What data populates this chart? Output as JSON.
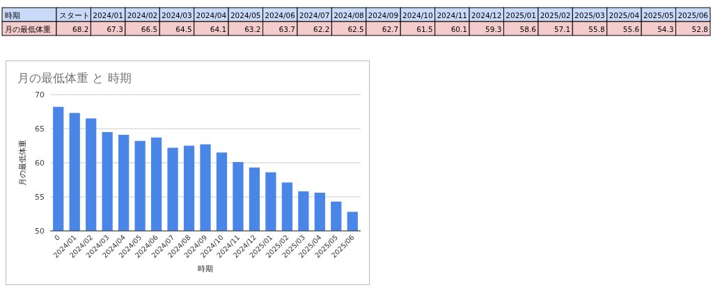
{
  "chart_data": [
    {
      "type": "other",
      "xlabel": "時期",
      "ylabel": "月の最低体重",
      "categories": [
        "スタート",
        "2024/01",
        "2024/02",
        "2024/03",
        "2024/04",
        "2024/05",
        "2024/06",
        "2024/07",
        "2024/08",
        "2024/09",
        "2024/10",
        "2024/11",
        "2024/12",
        "2025/01",
        "2025/02",
        "2025/03",
        "2025/04",
        "2025/05",
        "2025/06"
      ],
      "values": [
        68.2,
        67.3,
        66.5,
        64.5,
        64.1,
        63.2,
        63.7,
        62.2,
        62.5,
        62.7,
        61.5,
        60.1,
        59.3,
        58.6,
        57.1,
        55.8,
        55.6,
        54.3,
        52.8
      ],
      "data_labels": true
    },
    {
      "type": "bar",
      "title": "月の最低体重 と 時期",
      "xlabel": "時期",
      "ylabel": "月の最低体重",
      "categories": [
        "0",
        "2024/01",
        "2024/02",
        "2024/03",
        "2024/04",
        "2024/05",
        "2024/06",
        "2024/07",
        "2024/08",
        "2024/09",
        "2024/10",
        "2024/11",
        "2024/12",
        "2025/01",
        "2025/02",
        "2025/03",
        "2025/04",
        "2025/05",
        "2025/06"
      ],
      "values": [
        68.2,
        67.3,
        66.5,
        64.5,
        64.1,
        63.2,
        63.7,
        62.2,
        62.5,
        62.7,
        61.5,
        60.1,
        59.3,
        58.6,
        57.1,
        55.8,
        55.6,
        54.3,
        52.8
      ],
      "color": "#4a86e8",
      "ylim": [
        50,
        70
      ],
      "yticks": [
        50,
        55,
        60,
        65,
        70
      ],
      "grid": "y"
    }
  ]
}
